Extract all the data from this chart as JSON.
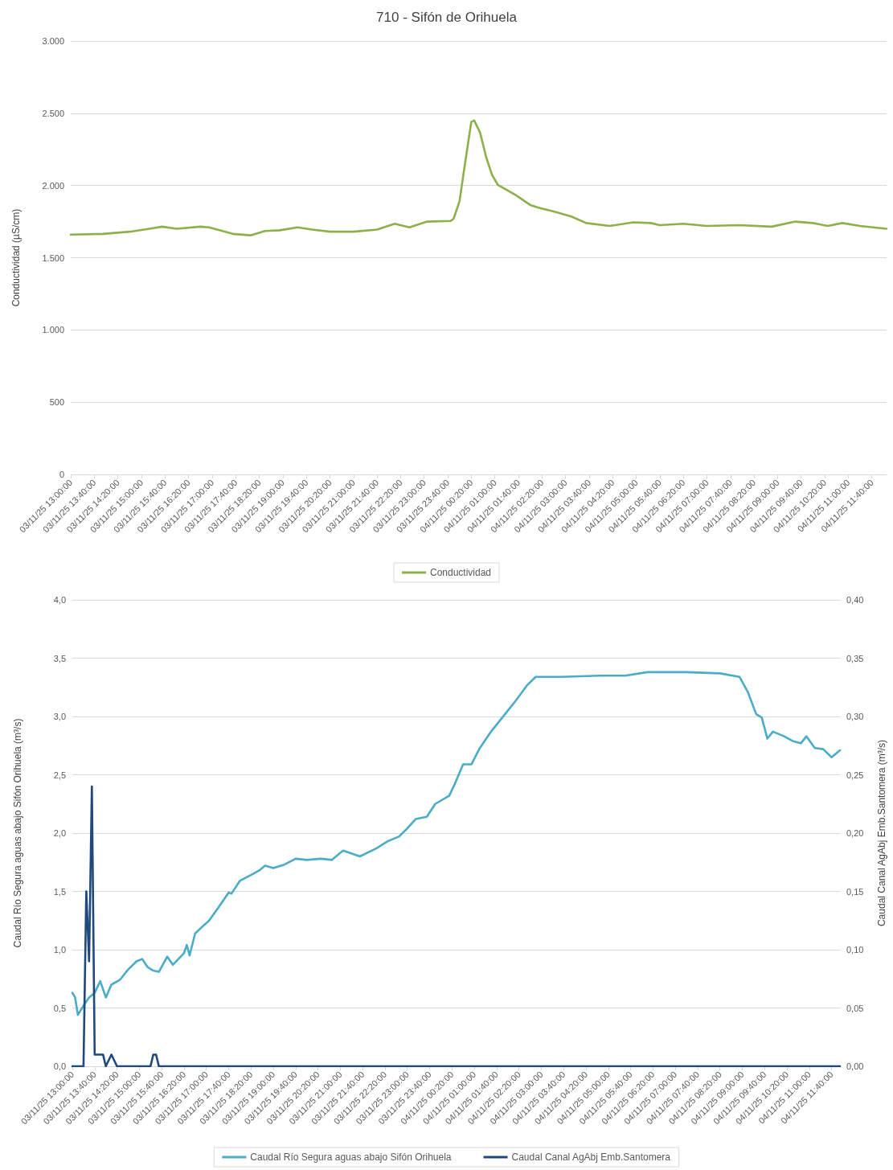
{
  "chart_data": [
    {
      "type": "line",
      "title": "710 - Sifón de Orihuela",
      "ylabel": "Conductividad (µS/cm)",
      "x": [
        "--11-03T13:00",
        "--11-03T13:55",
        "--11-03T14:40",
        "--11-03T15:20",
        "--11-03T15:35",
        "--11-03T16:00",
        "--11-03T16:40",
        "--11-03T16:55",
        "--11-03T17:35",
        "--11-03T18:05",
        "--11-03T18:30",
        "--11-03T18:55",
        "--11-03T19:25",
        "--11-03T19:50",
        "--11-03T20:20",
        "--11-03T21:00",
        "--11-03T21:40",
        "--11-03T22:10",
        "--11-03T22:35",
        "--11-03T23:05",
        "--11-03T23:45",
        "--11-03T23:50",
        "--11-04T00:00",
        "--11-04T00:10",
        "--11-04T00:20",
        "--11-04T00:25",
        "--11-04T00:35",
        "--11-04T00:45",
        "--11-04T00:55",
        "--11-04T01:05",
        "--11-04T01:35",
        "--11-04T02:00",
        "--11-04T02:15",
        "--11-04T02:40",
        "--11-04T03:10",
        "--11-04T03:35",
        "--11-04T04:15",
        "--11-04T04:55",
        "--11-04T05:25",
        "--11-04T05:40",
        "--11-04T06:20",
        "--11-04T07:00",
        "--11-04T07:55",
        "--11-04T08:50",
        "--11-04T09:30",
        "--11-04T10:00",
        "--11-04T10:25",
        "--11-04T10:50",
        "--11-04T11:20",
        "--11-04T12:05"
      ],
      "series": [
        {
          "name": "Conductividad",
          "color": "#8db04a",
          "values": [
            1660,
            1665,
            1680,
            1705,
            1715,
            1700,
            1715,
            1710,
            1665,
            1655,
            1685,
            1690,
            1710,
            1695,
            1680,
            1680,
            1695,
            1735,
            1710,
            1750,
            1755,
            1770,
            1890,
            2170,
            2440,
            2450,
            2365,
            2200,
            2075,
            2005,
            1935,
            1865,
            1845,
            1820,
            1785,
            1740,
            1720,
            1745,
            1740,
            1725,
            1735,
            1720,
            1725,
            1715,
            1750,
            1740,
            1720,
            1740,
            1720,
            1700
          ]
        }
      ],
      "xlim": [
        "--11-03T13:00",
        "--11-04T12:05"
      ],
      "xticks": [
        {
          "value": "--11-03T13:00",
          "label": "03/11/25 13:00:00"
        },
        {
          "value": "--11-03T13:40",
          "label": "03/11/25 13:40:00"
        },
        {
          "value": "--11-03T14:20",
          "label": "03/11/25 14:20:00"
        },
        {
          "value": "--11-03T15:00",
          "label": "03/11/25 15:00:00"
        },
        {
          "value": "--11-03T15:40",
          "label": "03/11/25 15:40:00"
        },
        {
          "value": "--11-03T16:20",
          "label": "03/11/25 16:20:00"
        },
        {
          "value": "--11-03T17:00",
          "label": "03/11/25 17:00:00"
        },
        {
          "value": "--11-03T17:40",
          "label": "03/11/25 17:40:00"
        },
        {
          "value": "--11-03T18:20",
          "label": "03/11/25 18:20:00"
        },
        {
          "value": "--11-03T19:00",
          "label": "03/11/25 19:00:00"
        },
        {
          "value": "--11-03T19:40",
          "label": "03/11/25 19:40:00"
        },
        {
          "value": "--11-03T20:20",
          "label": "03/11/25 20:20:00"
        },
        {
          "value": "--11-03T21:00",
          "label": "03/11/25 21:00:00"
        },
        {
          "value": "--11-03T21:40",
          "label": "03/11/25 21:40:00"
        },
        {
          "value": "--11-03T22:20",
          "label": "03/11/25 22:20:00"
        },
        {
          "value": "--11-03T23:00",
          "label": "03/11/25 23:00:00"
        },
        {
          "value": "--11-03T23:40",
          "label": "03/11/25 23:40:00"
        },
        {
          "value": "--11-04T00:20",
          "label": "04/11/25 00:20:00"
        },
        {
          "value": "--11-04T01:00",
          "label": "04/11/25 01:00:00"
        },
        {
          "value": "--11-04T01:40",
          "label": "04/11/25 01:40:00"
        },
        {
          "value": "--11-04T02:20",
          "label": "04/11/25 02:20:00"
        },
        {
          "value": "--11-04T03:00",
          "label": "04/11/25 03:00:00"
        },
        {
          "value": "--11-04T03:40",
          "label": "04/11/25 03:40:00"
        },
        {
          "value": "--11-04T04:20",
          "label": "04/11/25 04:20:00"
        },
        {
          "value": "--11-04T05:00",
          "label": "04/11/25 05:00:00"
        },
        {
          "value": "--11-04T05:40",
          "label": "04/11/25 05:40:00"
        },
        {
          "value": "--11-04T06:20",
          "label": "04/11/25 06:20:00"
        },
        {
          "value": "--11-04T07:00",
          "label": "04/11/25 07:00:00"
        },
        {
          "value": "--11-04T07:40",
          "label": "04/11/25 07:40:00"
        },
        {
          "value": "--11-04T08:20",
          "label": "04/11/25 08:20:00"
        },
        {
          "value": "--11-04T09:00",
          "label": "04/11/25 09:00:00"
        },
        {
          "value": "--11-04T09:40",
          "label": "04/11/25 09:40:00"
        },
        {
          "value": "--11-04T10:20",
          "label": "04/11/25 10:20:00"
        },
        {
          "value": "--11-04T11:00",
          "label": "04/11/25 11:00:00"
        },
        {
          "value": "--11-04T11:40",
          "label": "04/11/25 11:40:00"
        }
      ],
      "ylim": [
        0,
        3000
      ],
      "yticks": [
        0,
        {
          "value": 500,
          "label": "500"
        },
        {
          "value": 1000,
          "label": "1.000"
        },
        {
          "value": 1500,
          "label": "1.500"
        },
        {
          "value": 2000,
          "label": "2.000"
        },
        {
          "value": 2500,
          "label": "2.500"
        },
        {
          "value": 3000,
          "label": "3.000"
        }
      ],
      "grid": "y",
      "legend": "bottom",
      "marker": "none"
    },
    {
      "type": "line",
      "ylabel": "Caudal Río Segura aguas abajo Sifón Orihuela (m³/s)",
      "y2label": "Caudal Canal AgAbj Emb.Santomera (m³/s)",
      "series": [
        {
          "name": "Caudal Río Segura aguas abajo Sifón Orihuela",
          "color": "#4bacc6",
          "x": [
            "--11-03T13:00",
            "--11-03T13:05",
            "--11-03T13:10",
            "--11-03T13:20",
            "--11-03T13:30",
            "--11-03T13:40",
            "--11-03T13:50",
            "--11-03T14:00",
            "--11-03T14:10",
            "--11-03T14:25",
            "--11-03T14:40",
            "--11-03T14:55",
            "--11-03T15:05",
            "--11-03T15:15",
            "--11-03T15:25",
            "--11-03T15:35",
            "--11-03T15:50",
            "--11-03T16:00",
            "--11-03T16:20",
            "--11-03T16:25",
            "--11-03T16:30",
            "--11-03T16:40",
            "--11-03T17:05",
            "--11-03T17:20",
            "--11-03T17:40",
            "--11-03T17:45",
            "--11-03T18:00",
            "--11-03T18:20",
            "--11-03T18:35",
            "--11-03T18:45",
            "--11-03T19:00",
            "--11-03T19:20",
            "--11-03T19:40",
            "--11-03T20:00",
            "--11-03T20:25",
            "--11-03T20:45",
            "--11-03T21:05",
            "--11-03T21:35",
            "--11-03T22:05",
            "--11-03T22:25",
            "--11-03T22:45",
            "--11-03T23:00",
            "--11-03T23:15",
            "--11-03T23:35",
            "--11-03T23:50",
            "--11-04T00:15",
            "--11-04T00:25",
            "--11-04T00:40",
            "--11-04T00:55",
            "--11-04T01:10",
            "--11-04T01:30",
            "--11-04T01:55",
            "--11-04T02:15",
            "--11-04T02:35",
            "--11-04T02:50",
            "--11-04T03:35",
            "--11-04T04:45",
            "--11-04T05:30",
            "--11-04T06:10",
            "--11-04T07:20",
            "--11-04T08:20",
            "--11-04T08:55",
            "--11-04T09:10",
            "--11-04T09:25",
            "--11-04T09:35",
            "--11-04T09:45",
            "--11-04T09:55",
            "--11-04T10:15",
            "--11-04T10:30",
            "--11-04T10:45",
            "--11-04T10:55",
            "--11-04T11:10",
            "--11-04T11:25",
            "--11-04T11:40",
            "--11-04T11:55"
          ],
          "values": [
            0.63,
            0.59,
            0.44,
            0.52,
            0.59,
            0.63,
            0.73,
            0.59,
            0.7,
            0.74,
            0.83,
            0.9,
            0.92,
            0.85,
            0.82,
            0.81,
            0.94,
            0.87,
            0.97,
            1.04,
            0.95,
            1.14,
            1.25,
            1.35,
            1.49,
            1.48,
            1.59,
            1.64,
            1.68,
            1.72,
            1.7,
            1.73,
            1.78,
            1.77,
            1.78,
            1.77,
            1.85,
            1.8,
            1.87,
            1.93,
            1.97,
            2.04,
            2.12,
            2.14,
            2.25,
            2.32,
            2.42,
            2.59,
            2.59,
            2.73,
            2.87,
            3.02,
            3.14,
            3.27,
            3.34,
            3.34,
            3.35,
            3.35,
            3.38,
            3.38,
            3.37,
            3.34,
            3.21,
            3.02,
            2.99,
            2.81,
            2.87,
            2.83,
            2.79,
            2.77,
            2.83,
            2.73,
            2.72,
            2.65,
            2.71
          ]
        },
        {
          "name": "Caudal Canal AgAbj Emb.Santomera",
          "color": "#1f497d",
          "axis": "y2",
          "x": [
            "--11-03T13:00",
            "--11-03T13:20",
            "--11-03T13:25",
            "--11-03T13:30",
            "--11-03T13:35",
            "--11-03T13:40",
            "--11-03T13:55",
            "--11-03T14:00",
            "--11-03T14:10",
            "--11-03T14:20",
            "--11-03T15:20",
            "--11-03T15:25",
            "--11-03T15:30",
            "--11-03T15:35",
            "--11-04T11:55"
          ],
          "values": [
            0,
            0,
            0.15,
            0.09,
            0.24,
            0.01,
            0.01,
            0,
            0.01,
            0,
            0,
            0.01,
            0.01,
            0,
            0
          ]
        }
      ],
      "xlim": [
        "--11-03T13:00",
        "--11-04T11:55"
      ],
      "xticks": [
        {
          "value": "--11-03T13:00",
          "label": "03/11/25 13:00:00"
        },
        {
          "value": "--11-03T13:40",
          "label": "03/11/25 13:40:00"
        },
        {
          "value": "--11-03T14:20",
          "label": "03/11/25 14:20:00"
        },
        {
          "value": "--11-03T15:00",
          "label": "03/11/25 15:00:00"
        },
        {
          "value": "--11-03T15:40",
          "label": "03/11/25 15:40:00"
        },
        {
          "value": "--11-03T16:20",
          "label": "03/11/25 16:20:00"
        },
        {
          "value": "--11-03T17:00",
          "label": "03/11/25 17:00:00"
        },
        {
          "value": "--11-03T17:40",
          "label": "03/11/25 17:40:00"
        },
        {
          "value": "--11-03T18:20",
          "label": "03/11/25 18:20:00"
        },
        {
          "value": "--11-03T19:00",
          "label": "03/11/25 19:00:00"
        },
        {
          "value": "--11-03T19:40",
          "label": "03/11/25 19:40:00"
        },
        {
          "value": "--11-03T20:20",
          "label": "03/11/25 20:20:00"
        },
        {
          "value": "--11-03T21:00",
          "label": "03/11/25 21:00:00"
        },
        {
          "value": "--11-03T21:40",
          "label": "03/11/25 21:40:00"
        },
        {
          "value": "--11-03T22:20",
          "label": "03/11/25 22:20:00"
        },
        {
          "value": "--11-03T23:00",
          "label": "03/11/25 23:00:00"
        },
        {
          "value": "--11-03T23:40",
          "label": "03/11/25 23:40:00"
        },
        {
          "value": "--11-04T00:20",
          "label": "04/11/25 00:20:00"
        },
        {
          "value": "--11-04T01:00",
          "label": "04/11/25 01:00:00"
        },
        {
          "value": "--11-04T01:40",
          "label": "04/11/25 01:40:00"
        },
        {
          "value": "--11-04T02:20",
          "label": "04/11/25 02:20:00"
        },
        {
          "value": "--11-04T03:00",
          "label": "04/11/25 03:00:00"
        },
        {
          "value": "--11-04T03:40",
          "label": "04/11/25 03:40:00"
        },
        {
          "value": "--11-04T04:20",
          "label": "04/11/25 04:20:00"
        },
        {
          "value": "--11-04T05:00",
          "label": "04/11/25 05:00:00"
        },
        {
          "value": "--11-04T05:40",
          "label": "04/11/25 05:40:00"
        },
        {
          "value": "--11-04T06:20",
          "label": "04/11/25 06:20:00"
        },
        {
          "value": "--11-04T07:00",
          "label": "04/11/25 07:00:00"
        },
        {
          "value": "--11-04T07:40",
          "label": "04/11/25 07:40:00"
        },
        {
          "value": "--11-04T08:20",
          "label": "04/11/25 08:20:00"
        },
        {
          "value": "--11-04T09:00",
          "label": "04/11/25 09:00:00"
        },
        {
          "value": "--11-04T09:40",
          "label": "04/11/25 09:40:00"
        },
        {
          "value": "--11-04T10:20",
          "label": "04/11/25 10:20:00"
        },
        {
          "value": "--11-04T11:00",
          "label": "04/11/25 11:00:00"
        },
        {
          "value": "--11-04T11:40",
          "label": "04/11/25 11:40:00"
        }
      ],
      "ylim": [
        0,
        4
      ],
      "yticks": [
        {
          "value": 0,
          "label": "0,0"
        },
        {
          "value": 0.5,
          "label": "0,5"
        },
        {
          "value": 1,
          "label": "1,0"
        },
        {
          "value": 1.5,
          "label": "1,5"
        },
        {
          "value": 2,
          "label": "2,0"
        },
        {
          "value": 2.5,
          "label": "2,5"
        },
        {
          "value": 3,
          "label": "3,0"
        },
        {
          "value": 3.5,
          "label": "3,5"
        },
        {
          "value": 4,
          "label": "4,0"
        }
      ],
      "y2lim": [
        0,
        0.4
      ],
      "y2ticks": [
        {
          "value": 0,
          "label": "0,00"
        },
        {
          "value": 0.05,
          "label": "0,05"
        },
        {
          "value": 0.1,
          "label": "0,10"
        },
        {
          "value": 0.15,
          "label": "0,15"
        },
        {
          "value": 0.2,
          "label": "0,20"
        },
        {
          "value": 0.25,
          "label": "0,25"
        },
        {
          "value": 0.3,
          "label": "0,30"
        },
        {
          "value": 0.35,
          "label": "0,35"
        },
        {
          "value": 0.4,
          "label": "0,40"
        }
      ],
      "grid": "y",
      "legend": "bottom",
      "marker": "none"
    }
  ]
}
